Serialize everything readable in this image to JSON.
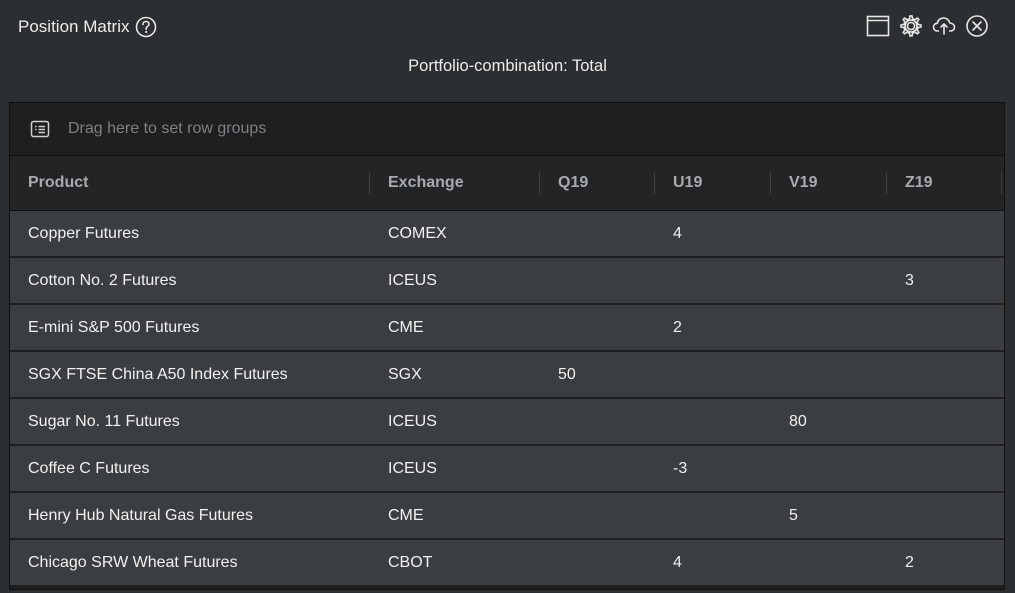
{
  "window": {
    "title": "Position Matrix",
    "subtitle": "Portfolio-combination: Total"
  },
  "toolbar": {
    "icons": [
      "window-icon",
      "gear-icon",
      "cloud-icon",
      "close-icon"
    ]
  },
  "grid": {
    "group_panel_placeholder": "Drag here to set row groups",
    "columns": [
      "Product",
      "Exchange",
      "Q19",
      "U19",
      "V19",
      "Z19"
    ],
    "rows": [
      {
        "product": "Copper Futures",
        "exchange": "COMEX",
        "q19": "",
        "u19": "4",
        "v19": "",
        "z19": ""
      },
      {
        "product": "Cotton No. 2 Futures",
        "exchange": "ICEUS",
        "q19": "",
        "u19": "",
        "v19": "",
        "z19": "3"
      },
      {
        "product": "E-mini S&P 500 Futures",
        "exchange": "CME",
        "q19": "",
        "u19": "2",
        "v19": "",
        "z19": ""
      },
      {
        "product": "SGX FTSE China A50 Index Futures",
        "exchange": "SGX",
        "q19": "50",
        "u19": "",
        "v19": "",
        "z19": ""
      },
      {
        "product": "Sugar No. 11 Futures",
        "exchange": "ICEUS",
        "q19": "",
        "u19": "",
        "v19": "80",
        "z19": ""
      },
      {
        "product": "Coffee C Futures",
        "exchange": "ICEUS",
        "q19": "",
        "u19": "-3",
        "v19": "",
        "z19": ""
      },
      {
        "product": "Henry Hub Natural Gas Futures",
        "exchange": "CME",
        "q19": "",
        "u19": "",
        "v19": "5",
        "z19": ""
      },
      {
        "product": "Chicago SRW Wheat Futures",
        "exchange": "CBOT",
        "q19": "",
        "u19": "4",
        "v19": "",
        "z19": "2"
      }
    ]
  },
  "colors": {
    "background": "#2c2f31",
    "row": "#3a3e41",
    "header": "#222426",
    "text": "#f1f1f1"
  }
}
